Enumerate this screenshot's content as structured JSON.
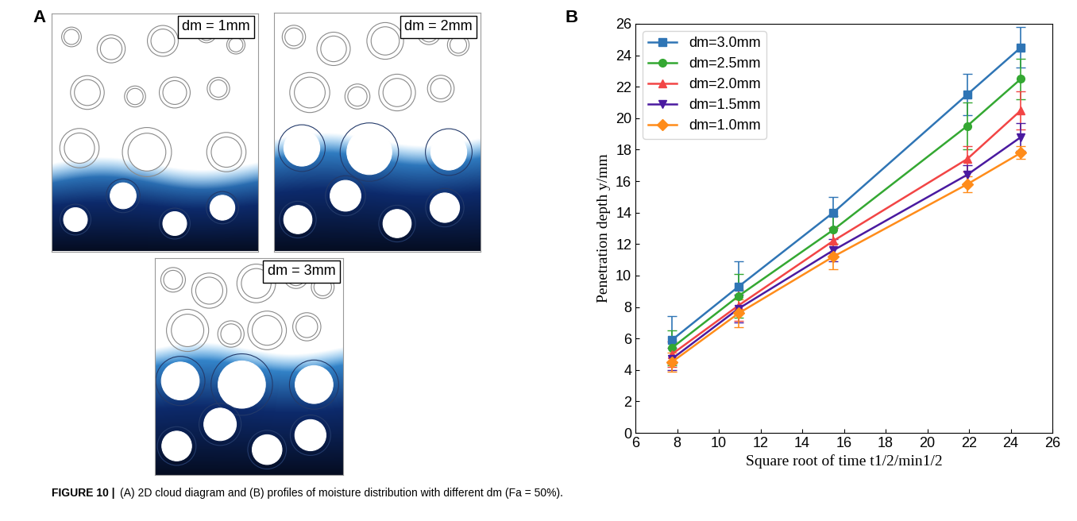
{
  "panel_a": {
    "label": "A",
    "images": [
      {
        "label": "dm = 1mm"
      },
      {
        "label": "dm = 2mm"
      },
      {
        "label": "dm = 3mm"
      }
    ]
  },
  "chart_data": {
    "type": "line",
    "panel_label": "B",
    "x_label": "Square root of time t1/2/min1/2",
    "y_label": "Penetration depth y/mm",
    "x": [
      7.75,
      10.95,
      15.49,
      21.91,
      24.49
    ],
    "xlim": [
      6,
      26
    ],
    "xticks": [
      6,
      8,
      10,
      12,
      14,
      16,
      18,
      20,
      22,
      24,
      26
    ],
    "ylim": [
      0,
      26
    ],
    "yticks": [
      0,
      2,
      4,
      6,
      8,
      10,
      12,
      14,
      16,
      18,
      20,
      22,
      24,
      26
    ],
    "legend": "upper left",
    "series": [
      {
        "name": "dm=3.0mm",
        "color": "#2f75b5",
        "marker": "square",
        "values": [
          5.9,
          9.3,
          14.0,
          21.5,
          24.5
        ],
        "errors": [
          1.5,
          1.6,
          1.0,
          1.3,
          1.3
        ]
      },
      {
        "name": "dm=2.5mm",
        "color": "#34a832",
        "marker": "circle",
        "values": [
          5.4,
          8.7,
          12.9,
          19.5,
          22.5
        ],
        "errors": [
          1.1,
          1.4,
          0.9,
          1.5,
          1.3
        ]
      },
      {
        "name": "dm=2.0mm",
        "color": "#f24545",
        "marker": "triangle_up",
        "values": [
          5.0,
          8.1,
          12.2,
          17.4,
          20.5
        ],
        "errors": [
          0.8,
          1.0,
          0.8,
          0.8,
          1.2
        ]
      },
      {
        "name": "dm=1.5mm",
        "color": "#4a1aa0",
        "marker": "triangle_down",
        "values": [
          4.7,
          7.9,
          11.6,
          16.4,
          18.8
        ],
        "errors": [
          0.7,
          0.9,
          0.7,
          0.6,
          0.9
        ]
      },
      {
        "name": "dm=1.0mm",
        "color": "#ff8c1a",
        "marker": "diamond",
        "values": [
          4.5,
          7.6,
          11.2,
          15.8,
          17.8
        ],
        "errors": [
          0.6,
          0.9,
          0.8,
          0.5,
          0.4
        ]
      }
    ]
  },
  "caption": {
    "label": "FIGURE 10 |",
    "text": "(A) 2D cloud diagram and (B) profiles of moisture distribution with different dm (Fa = 50%)."
  }
}
